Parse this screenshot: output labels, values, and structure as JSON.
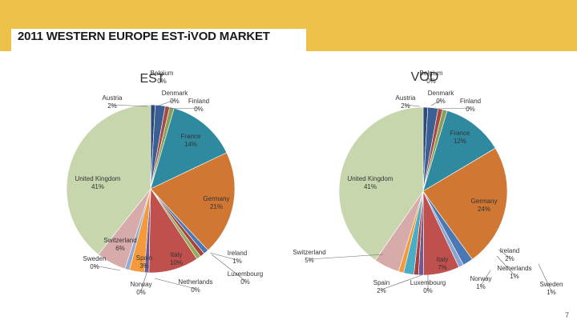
{
  "header": {
    "title": "2011 WESTERN EUROPE EST-iVOD MARKET"
  },
  "page_number": "7",
  "chart_data": [
    {
      "type": "pie",
      "title": "EST",
      "slices": [
        {
          "name": "Belgium",
          "value": 0,
          "label": "0%",
          "color": "#2e4a78"
        },
        {
          "name": "Austria",
          "value": 2,
          "label": "2%",
          "color": "#3a5f93"
        },
        {
          "name": "Denmark",
          "value": 0,
          "label": "0%",
          "color": "#a84a44"
        },
        {
          "name": "Finland",
          "value": 0,
          "label": "0%",
          "color": "#8a9f5a"
        },
        {
          "name": "France",
          "value": 14,
          "label": "14%",
          "color": "#2f8aa0"
        },
        {
          "name": "Germany",
          "value": 21,
          "label": "21%",
          "color": "#cf7733"
        },
        {
          "name": "Ireland",
          "value": 1,
          "label": "1%",
          "color": "#4a78b5"
        },
        {
          "name": "Luxembourg",
          "value": 0,
          "label": "0%",
          "color": "#a8403c"
        },
        {
          "name": "Netherlands",
          "value": 0,
          "label": "0%",
          "color": "#93ad5a"
        },
        {
          "name": "Italy",
          "value": 10,
          "label": "10%",
          "color": "#c0504d"
        },
        {
          "name": "Norway",
          "value": 0,
          "label": "0%",
          "color": "#6f5a93"
        },
        {
          "name": "Spain",
          "value": 3,
          "label": "3%",
          "color": "#f39a3d"
        },
        {
          "name": "Sweden",
          "value": 0,
          "label": "0%",
          "color": "#93a9cf"
        },
        {
          "name": "Switzerland",
          "value": 6,
          "label": "6%",
          "color": "#d8abab"
        },
        {
          "name": "United Kingdom",
          "value": 41,
          "label": "41%",
          "color": "#c8d6ad"
        }
      ]
    },
    {
      "type": "pie",
      "title": "VOD",
      "slices": [
        {
          "name": "Belgium",
          "value": 0,
          "label": "0%",
          "color": "#2e4a78"
        },
        {
          "name": "Austria",
          "value": 2,
          "label": "2%",
          "color": "#3a5f93"
        },
        {
          "name": "Denmark",
          "value": 0,
          "label": "0%",
          "color": "#a84a44"
        },
        {
          "name": "Finland",
          "value": 0,
          "label": "0%",
          "color": "#8a9f5a"
        },
        {
          "name": "France",
          "value": 12,
          "label": "12%",
          "color": "#2f8aa0"
        },
        {
          "name": "Germany",
          "value": 24,
          "label": "24%",
          "color": "#cf7733"
        },
        {
          "name": "Ireland",
          "value": 2,
          "label": "2%",
          "color": "#4a78b5"
        },
        {
          "name": "Netherlands",
          "value": 1,
          "label": "1%",
          "color": "#8aa4cf"
        },
        {
          "name": "Italy",
          "value": 7,
          "label": "7%",
          "color": "#c0504d"
        },
        {
          "name": "Norway",
          "value": 1,
          "label": "1%",
          "color": "#6f5a93"
        },
        {
          "name": "Luxembourg",
          "value": 0,
          "label": "0%",
          "color": "#a8403c"
        },
        {
          "name": "Spain",
          "value": 2,
          "label": "2%",
          "color": "#4bacc6"
        },
        {
          "name": "Sweden",
          "value": 1,
          "label": "1%",
          "color": "#f39a3d"
        },
        {
          "name": "Switzerland",
          "value": 5,
          "label": "5%",
          "color": "#d8abab"
        },
        {
          "name": "United Kingdom",
          "value": 41,
          "label": "41%",
          "color": "#c8d6ad"
        }
      ]
    }
  ]
}
